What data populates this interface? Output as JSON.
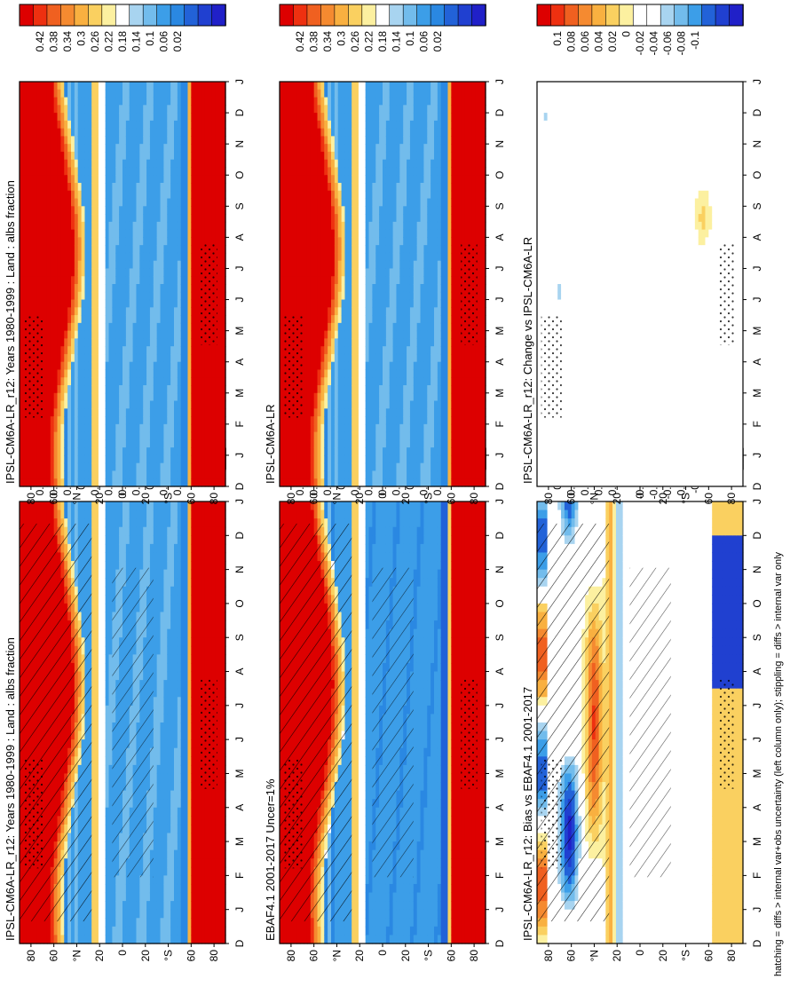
{
  "figure": {
    "footnote": "hatching = diffs > internal var+obs uncertainty (left column only); stippling = diffs > internal var only",
    "colors": {
      "abs": [
        "#dd0000",
        "#ee3010",
        "#f06020",
        "#f58a30",
        "#f9b040",
        "#fad060",
        "#fcf0a0",
        "#ffffff",
        "#a8d4f0",
        "#72bcec",
        "#3c9ee8",
        "#2a88e2",
        "#2262d8",
        "#2040d0",
        "#2020c8"
      ],
      "diff": [
        "#dd0000",
        "#ee3010",
        "#f06020",
        "#f58a30",
        "#f9b040",
        "#fad060",
        "#fcf0a0",
        "#ffffff",
        "#ffffff",
        "#a8d4f0",
        "#72bcec",
        "#3c9ee8",
        "#2262d8",
        "#2040d0",
        "#2020c8"
      ]
    }
  },
  "chart_data": [
    {
      "id": "model_col1",
      "type": "heatmap",
      "title": "IPSL-CM6A-LR_r12: Years 1980-1999 : Land : albs fraction",
      "x": [
        "D",
        "J",
        "F",
        "M",
        "A",
        "M",
        "J",
        "J",
        "A",
        "S",
        "O",
        "N",
        "D",
        "J"
      ],
      "y_ticks": [
        "80",
        "60",
        "°N",
        "20",
        "0",
        "20",
        "°S",
        "60",
        "80"
      ],
      "colorbar": [
        "0.42",
        "0.38",
        "0.34",
        "0.3",
        "0.26",
        "0.22",
        "0.18",
        "0.14",
        "0.1",
        "0.06",
        "0.02"
      ],
      "zlim": [
        0.0,
        0.44
      ],
      "hatching": true,
      "stippling": true
    },
    {
      "id": "obs_col1",
      "type": "heatmap",
      "title": "EBAF4.1 2001-2017 Uncer=1%",
      "x": [
        "D",
        "J",
        "F",
        "M",
        "A",
        "M",
        "J",
        "J",
        "A",
        "S",
        "O",
        "N",
        "D",
        "J"
      ],
      "y_ticks": [
        "80",
        "60",
        "°N",
        "20",
        "0",
        "20",
        "°S",
        "60",
        "80"
      ],
      "colorbar": [
        "0.42",
        "0.38",
        "0.34",
        "0.3",
        "0.26",
        "0.22",
        "0.18",
        "0.14",
        "0.1",
        "0.06",
        "0.02"
      ],
      "zlim": [
        0.0,
        0.44
      ],
      "hatching": true,
      "stippling": true
    },
    {
      "id": "bias_col1",
      "type": "heatmap",
      "title": "IPSL-CM6A-LR_r12: Bias vs EBAF4.1 2001-2017",
      "x": [
        "D",
        "J",
        "F",
        "M",
        "A",
        "M",
        "J",
        "J",
        "A",
        "S",
        "O",
        "N",
        "D",
        "J"
      ],
      "y_ticks": [
        "80",
        "60",
        "°N",
        "20",
        "0",
        "20",
        "°S",
        "60",
        "80"
      ],
      "colorbar": [
        "0.1",
        "0.08",
        "0.06",
        "0.04",
        "0.02",
        "0",
        "-0.02",
        "-0.04",
        "-0.06",
        "-0.08",
        "-0.1"
      ],
      "zlim": [
        -0.12,
        0.12
      ],
      "hatching": true,
      "stippling": true
    },
    {
      "id": "model_col2",
      "type": "heatmap",
      "title": "IPSL-CM6A-LR_r12: Years 1980-1999 : Land : albs fraction",
      "x": [
        "D",
        "J",
        "F",
        "M",
        "A",
        "M",
        "J",
        "J",
        "A",
        "S",
        "O",
        "N",
        "D",
        "J"
      ],
      "y_ticks": [
        "80",
        "60",
        "°N",
        "20",
        "0",
        "20",
        "°S",
        "60",
        "80"
      ],
      "colorbar": [
        "0.42",
        "0.38",
        "0.34",
        "0.3",
        "0.26",
        "0.22",
        "0.18",
        "0.14",
        "0.1",
        "0.06",
        "0.02"
      ],
      "zlim": [
        0.0,
        0.44
      ],
      "hatching": false,
      "stippling": true
    },
    {
      "id": "ref_col2",
      "type": "heatmap",
      "title": "IPSL-CM6A-LR",
      "x": [
        "D",
        "J",
        "F",
        "M",
        "A",
        "M",
        "J",
        "J",
        "A",
        "S",
        "O",
        "N",
        "D",
        "J"
      ],
      "y_ticks": [
        "80",
        "60",
        "°N",
        "20",
        "0",
        "20",
        "°S",
        "60",
        "80"
      ],
      "colorbar": [
        "0.42",
        "0.38",
        "0.34",
        "0.3",
        "0.26",
        "0.22",
        "0.18",
        "0.14",
        "0.1",
        "0.06",
        "0.02"
      ],
      "zlim": [
        0.0,
        0.44
      ],
      "hatching": false,
      "stippling": true
    },
    {
      "id": "change_col2",
      "type": "heatmap",
      "title": "IPSL-CM6A-LR_r12: Change vs IPSL-CM6A-LR",
      "x": [
        "D",
        "J",
        "F",
        "M",
        "A",
        "M",
        "J",
        "J",
        "A",
        "S",
        "O",
        "N",
        "D",
        "J"
      ],
      "y_ticks": [
        "80",
        "60",
        "°N",
        "20",
        "0",
        "20",
        "°S",
        "60",
        "80"
      ],
      "colorbar": [
        "0.1",
        "0.08",
        "0.06",
        "0.04",
        "0.02",
        "0",
        "-0.02",
        "-0.04",
        "-0.06",
        "-0.08",
        "-0.1"
      ],
      "zlim": [
        -0.12,
        0.12
      ],
      "hatching": false,
      "stippling": true
    }
  ]
}
